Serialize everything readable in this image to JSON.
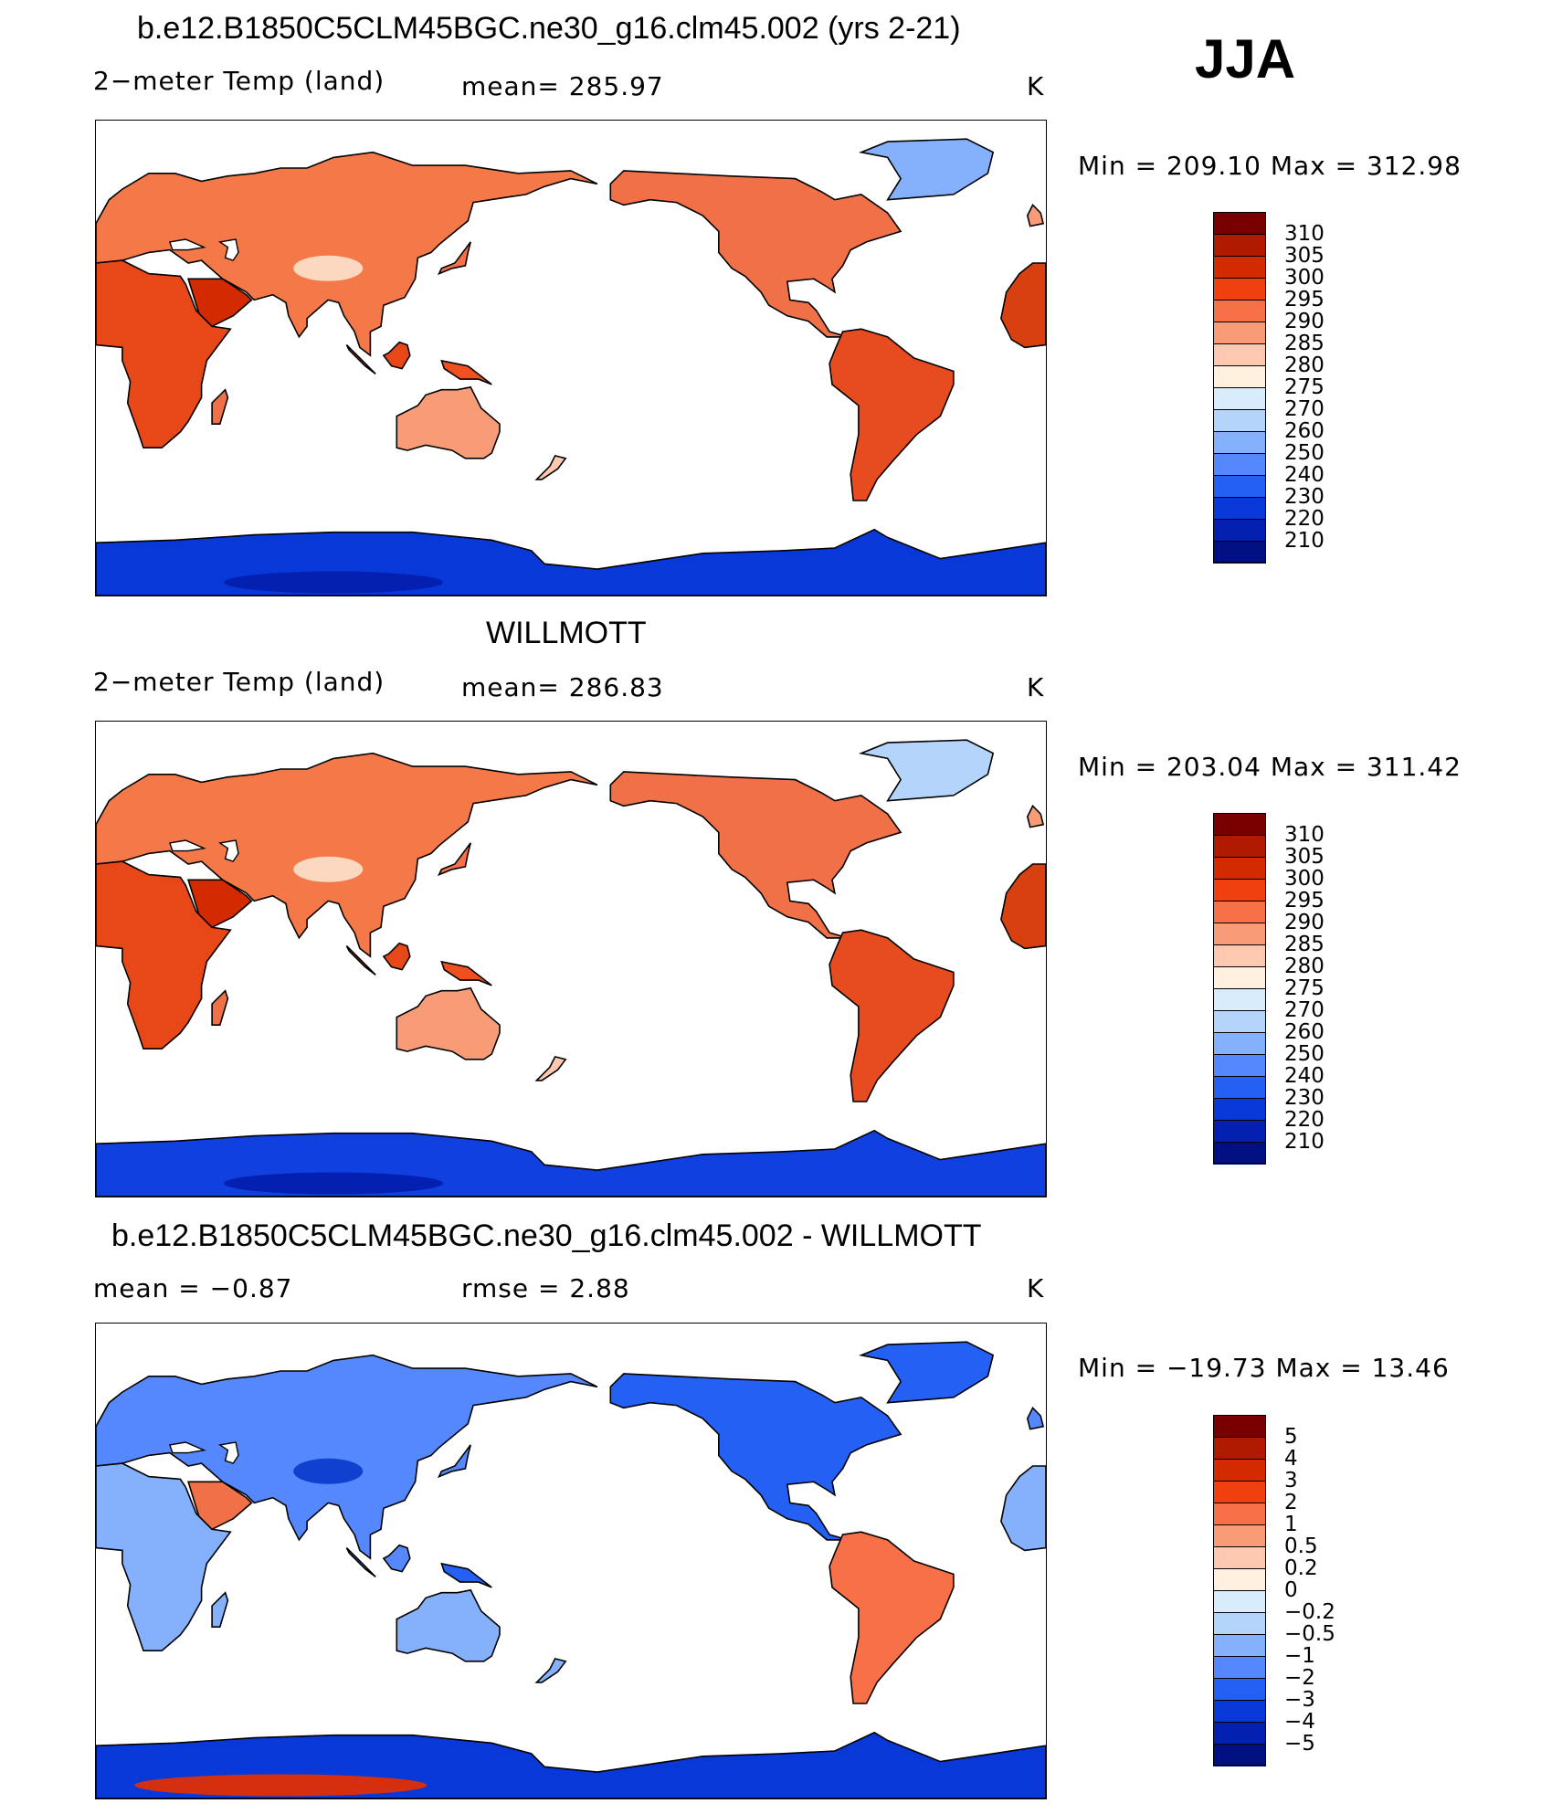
{
  "season": "JJA",
  "colors": {
    "abs_scale": [
      "#7a0000",
      "#b01a00",
      "#d42a00",
      "#f04010",
      "#f87048",
      "#f89c78",
      "#fcc8b0",
      "#fff0e0",
      "#d8ecfc",
      "#b4d4fc",
      "#84b0fc",
      "#5488fc",
      "#2460f4",
      "#0838d8",
      "#0420b0",
      "#001080"
    ],
    "diff_scale": [
      "#7a0000",
      "#b01a00",
      "#d42a00",
      "#f04010",
      "#f87048",
      "#f89c78",
      "#fcc8b0",
      "#fff0e0",
      "#d8ecfc",
      "#b4d4fc",
      "#84b0fc",
      "#5488fc",
      "#2460f4",
      "#0838d8",
      "#0420b0",
      "#001080"
    ]
  },
  "panels": [
    {
      "title": "b.e12.B1850C5CLM45BGC.ne30_g16.clm45.002 (yrs 2-21)",
      "left_label": "2−meter Temp (land)",
      "mid_label": "mean=  285.97",
      "units": "K",
      "minmax": "Min  =  209.10  Max  =  312.98",
      "colorbar_ticks": [
        "310",
        "305",
        "300",
        "295",
        "290",
        "285",
        "280",
        "275",
        "270",
        "260",
        "250",
        "240",
        "230",
        "220",
        "210"
      ]
    },
    {
      "title": "WILLMOTT",
      "left_label": "2−meter Temp (land)",
      "mid_label": "mean=  286.83",
      "units": "K",
      "minmax": "Min  =  203.04  Max  =  311.42",
      "colorbar_ticks": [
        "310",
        "305",
        "300",
        "295",
        "290",
        "285",
        "280",
        "275",
        "270",
        "260",
        "250",
        "240",
        "230",
        "220",
        "210"
      ]
    },
    {
      "title": "b.e12.B1850C5CLM45BGC.ne30_g16.clm45.002 - WILLMOTT",
      "left_label": "mean  =     −0.87",
      "mid_label": "rmse  =      2.88",
      "units": "K",
      "minmax": "Min  =  −19.73  Max  =     13.46",
      "colorbar_ticks": [
        "5",
        "4",
        "3",
        "2",
        "1",
        "0.5",
        "0.2",
        "0",
        "−0.2",
        "−0.5",
        "−1",
        "−2",
        "−3",
        "−4",
        "−5"
      ]
    }
  ],
  "chart_data": [
    {
      "type": "heatmap",
      "title": "b.e12.B1850C5CLM45BGC.ne30_g16.clm45.002 (yrs 2-21)",
      "variable": "2-meter Temp (land)",
      "units": "K",
      "mean": 285.97,
      "min": 209.1,
      "max": 312.98,
      "levels": [
        210,
        220,
        230,
        240,
        250,
        260,
        270,
        275,
        280,
        285,
        290,
        295,
        300,
        305,
        310
      ]
    },
    {
      "type": "heatmap",
      "title": "WILLMOTT",
      "variable": "2-meter Temp (land)",
      "units": "K",
      "mean": 286.83,
      "min": 203.04,
      "max": 311.42,
      "levels": [
        210,
        220,
        230,
        240,
        250,
        260,
        270,
        275,
        280,
        285,
        290,
        295,
        300,
        305,
        310
      ]
    },
    {
      "type": "heatmap",
      "title": "b.e12.B1850C5CLM45BGC.ne30_g16.clm45.002 - WILLMOTT",
      "variable": "difference",
      "units": "K",
      "mean": -0.87,
      "rmse": 2.88,
      "min": -19.73,
      "max": 13.46,
      "levels": [
        -5,
        -4,
        -3,
        -2,
        -1,
        -0.5,
        -0.2,
        0,
        0.2,
        0.5,
        1,
        2,
        3,
        4,
        5
      ]
    }
  ]
}
